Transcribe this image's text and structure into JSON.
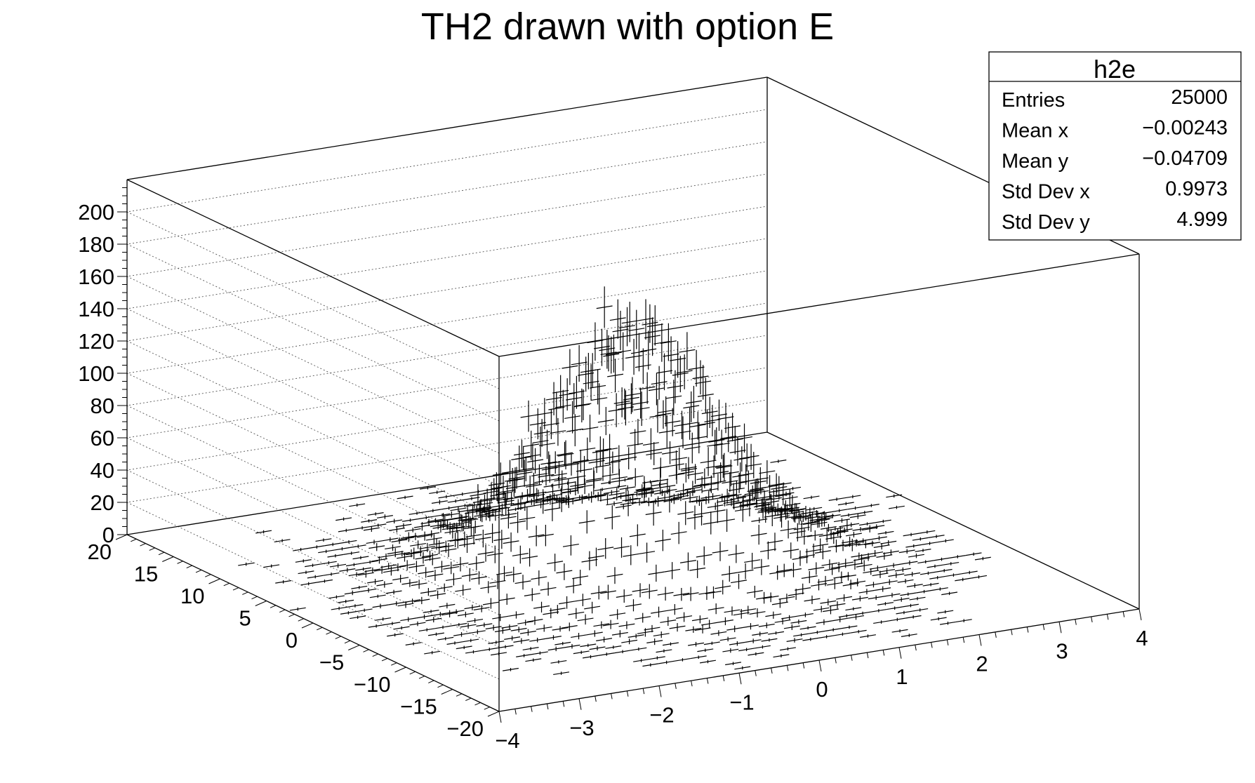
{
  "chart_data": {
    "type": "scatter",
    "subtype": "lego3d-errors",
    "title": "TH2 drawn with option E",
    "xlabel": "",
    "ylabel": "",
    "zlabel": "",
    "xlim": [
      -4,
      4
    ],
    "ylim": [
      -20,
      20
    ],
    "zlim": [
      0,
      220
    ],
    "x_ticks": [
      "−4",
      "−3",
      "−2",
      "−1",
      "0",
      "1",
      "2",
      "3",
      "4"
    ],
    "y_ticks": [
      "−20",
      "−15",
      "−10",
      "−5",
      "0",
      "5",
      "10",
      "15",
      "20"
    ],
    "z_ticks": [
      "0",
      "20",
      "40",
      "60",
      "80",
      "100",
      "120",
      "140",
      "160",
      "180",
      "200"
    ],
    "grid": true,
    "bins": {
      "nx": 40,
      "ny": 40
    },
    "distribution": {
      "mean_x": 0,
      "sigma_x": 1,
      "mean_y": 0,
      "sigma_y": 5,
      "peak_height": 150,
      "description_visible": "2D gaussian peaked at x=0, y=0"
    },
    "stats": {
      "name": "h2e",
      "rows": [
        {
          "label": "Entries",
          "value": "25000"
        },
        {
          "label": "Mean x",
          "value": "−0.00243"
        },
        {
          "label": "Mean y",
          "value": "−0.04709"
        },
        {
          "label": "Std Dev x",
          "value": "0.9973"
        },
        {
          "label": "Std Dev y",
          "value": "4.999"
        }
      ]
    }
  }
}
